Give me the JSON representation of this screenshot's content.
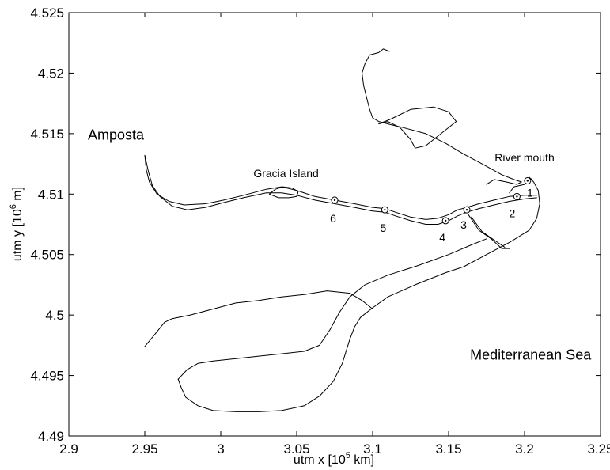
{
  "chart_data": {
    "type": "scatter",
    "title": "",
    "xlabel": {
      "prefix": "utm x [10",
      "exp": "5",
      "suffix": " km]"
    },
    "ylabel": {
      "prefix": "utm y [10",
      "exp": "6",
      "suffix": " m]"
    },
    "xlim": [
      2.9,
      3.25
    ],
    "ylim": [
      4.49,
      4.525
    ],
    "xticks": [
      2.9,
      2.95,
      3.0,
      3.05,
      3.1,
      3.15,
      3.2,
      3.25
    ],
    "xtick_labels": [
      "2.9",
      "2.95",
      "3",
      "3.05",
      "3.1",
      "3.15",
      "3.2",
      "3.25"
    ],
    "yticks": [
      4.49,
      4.495,
      4.5,
      4.505,
      4.51,
      4.515,
      4.52,
      4.525
    ],
    "ytick_labels": [
      "4.49",
      "4.495",
      "4.5",
      "4.505",
      "4.51",
      "4.515",
      "4.52",
      "4.525"
    ],
    "grid": false,
    "stations": [
      {
        "label": "1",
        "x": 3.202,
        "y": 4.5111
      },
      {
        "label": "2",
        "x": 3.195,
        "y": 4.5098
      },
      {
        "label": "3",
        "x": 3.162,
        "y": 4.5087
      },
      {
        "label": "4",
        "x": 3.148,
        "y": 4.5078
      },
      {
        "label": "5",
        "x": 3.108,
        "y": 4.5087
      },
      {
        "label": "6",
        "x": 3.075,
        "y": 4.5095
      }
    ],
    "places": [
      {
        "name": "Amposta",
        "x": 2.931,
        "y": 4.5145
      },
      {
        "name": "Gracia Island",
        "x": 3.043,
        "y": 4.5114
      },
      {
        "name": "River mouth",
        "x": 3.2,
        "y": 4.5127
      },
      {
        "name": "Mediterranean Sea",
        "x": 3.204,
        "y": 4.4963
      }
    ],
    "coastline": {
      "river_north_bank": [
        [
          2.95,
          4.5132
        ],
        [
          2.951,
          4.512
        ],
        [
          2.953,
          4.511
        ],
        [
          2.958,
          4.51
        ],
        [
          2.966,
          4.5094
        ],
        [
          2.976,
          4.5091
        ],
        [
          2.99,
          4.5092
        ],
        [
          3.002,
          4.5095
        ],
        [
          3.015,
          4.5099
        ],
        [
          3.03,
          4.5104
        ],
        [
          3.04,
          4.5106
        ],
        [
          3.05,
          4.5103
        ],
        [
          3.062,
          4.5098
        ],
        [
          3.075,
          4.5095
        ],
        [
          3.088,
          4.5092
        ],
        [
          3.1,
          4.5089
        ],
        [
          3.108,
          4.5088
        ],
        [
          3.115,
          4.5085
        ],
        [
          3.125,
          4.5081
        ],
        [
          3.135,
          4.5079
        ],
        [
          3.143,
          4.508
        ],
        [
          3.15,
          4.5083
        ],
        [
          3.156,
          4.5087
        ],
        [
          3.162,
          4.5089
        ],
        [
          3.17,
          4.5092
        ],
        [
          3.18,
          4.5095
        ],
        [
          3.19,
          4.5098
        ],
        [
          3.2,
          4.5099
        ],
        [
          3.208,
          4.5099
        ]
      ],
      "river_south_bank": [
        [
          2.95,
          4.5132
        ],
        [
          2.9525,
          4.5118
        ],
        [
          2.955,
          4.5107
        ],
        [
          2.96,
          4.5098
        ],
        [
          2.968,
          4.509
        ],
        [
          2.978,
          4.5087
        ],
        [
          2.99,
          4.5089
        ],
        [
          3.002,
          4.5093
        ],
        [
          3.015,
          4.5097
        ],
        [
          3.03,
          4.5101
        ],
        [
          3.04,
          4.5101
        ],
        [
          3.05,
          4.5099
        ],
        [
          3.062,
          4.5095
        ],
        [
          3.075,
          4.5092
        ],
        [
          3.088,
          4.5089
        ],
        [
          3.1,
          4.5086
        ],
        [
          3.108,
          4.5085
        ],
        [
          3.115,
          4.5082
        ],
        [
          3.125,
          4.5078
        ],
        [
          3.135,
          4.5075
        ],
        [
          3.143,
          4.5075
        ],
        [
          3.15,
          4.5078
        ],
        [
          3.156,
          4.5082
        ],
        [
          3.162,
          4.5085
        ],
        [
          3.17,
          4.5088
        ],
        [
          3.18,
          4.5091
        ],
        [
          3.19,
          4.5094
        ],
        [
          3.2,
          4.5096
        ],
        [
          3.208,
          4.5097
        ]
      ],
      "gracia_island": [
        [
          3.032,
          4.51
        ],
        [
          3.036,
          4.5104
        ],
        [
          3.041,
          4.5106
        ],
        [
          3.047,
          4.5105
        ],
        [
          3.051,
          4.5102
        ],
        [
          3.05,
          4.5098
        ],
        [
          3.045,
          4.5097
        ],
        [
          3.038,
          4.5097
        ],
        [
          3.032,
          4.51
        ]
      ],
      "north_spit": [
        [
          3.111,
          4.5218
        ],
        [
          3.107,
          4.522
        ],
        [
          3.104,
          4.5217
        ],
        [
          3.098,
          4.5215
        ],
        [
          3.095,
          4.5208
        ],
        [
          3.093,
          4.52
        ],
        [
          3.094,
          4.519
        ],
        [
          3.096,
          4.518
        ],
        [
          3.098,
          4.517
        ],
        [
          3.1,
          4.5163
        ],
        [
          3.104,
          4.516
        ],
        [
          3.11,
          4.5158
        ],
        [
          3.12,
          4.5155
        ],
        [
          3.135,
          4.515
        ],
        [
          3.148,
          4.5142
        ],
        [
          3.16,
          4.5133
        ],
        [
          3.172,
          4.5125
        ],
        [
          3.185,
          4.5116
        ],
        [
          3.193,
          4.5112
        ],
        [
          3.198,
          4.511
        ],
        [
          3.195,
          4.5108
        ],
        [
          3.188,
          4.511
        ],
        [
          3.18,
          4.5112
        ],
        [
          3.175,
          4.5108
        ]
      ],
      "lagoon_north": [
        [
          3.104,
          4.5158
        ],
        [
          3.112,
          4.5162
        ],
        [
          3.125,
          4.517
        ],
        [
          3.14,
          4.5172
        ],
        [
          3.15,
          4.5168
        ],
        [
          3.155,
          4.516
        ],
        [
          3.145,
          4.515
        ],
        [
          3.135,
          4.514
        ],
        [
          3.128,
          4.5138
        ],
        [
          3.125,
          4.5145
        ],
        [
          3.118,
          4.5155
        ],
        [
          3.11,
          4.516
        ],
        [
          3.104,
          4.5158
        ]
      ],
      "east_coast": [
        [
          3.203,
          4.5114
        ],
        [
          3.206,
          4.511
        ],
        [
          3.209,
          4.5103
        ],
        [
          3.21,
          4.5092
        ],
        [
          3.208,
          4.508
        ],
        [
          3.203,
          4.507
        ],
        [
          3.19,
          4.506
        ],
        [
          3.175,
          4.505
        ],
        [
          3.16,
          4.504
        ],
        [
          3.148,
          4.5035
        ],
        [
          3.128,
          4.5025
        ],
        [
          3.11,
          4.5015
        ],
        [
          3.1,
          4.5006
        ],
        [
          3.092,
          4.4998
        ],
        [
          3.088,
          4.499
        ],
        [
          3.085,
          4.498
        ],
        [
          3.08,
          4.496
        ],
        [
          3.074,
          4.4945
        ],
        [
          3.065,
          4.4933
        ],
        [
          3.055,
          4.4925
        ],
        [
          3.04,
          4.4921
        ],
        [
          3.025,
          4.492
        ],
        [
          3.01,
          4.492
        ],
        [
          2.995,
          4.4921
        ],
        [
          2.985,
          4.4925
        ],
        [
          2.977,
          4.4932
        ],
        [
          2.974,
          4.494
        ],
        [
          2.972,
          4.4947
        ]
      ],
      "south_bay_inner": [
        [
          2.95,
          4.4974
        ],
        [
          2.956,
          4.4983
        ],
        [
          2.963,
          4.4994
        ],
        [
          2.968,
          4.4997
        ],
        [
          2.98,
          4.5
        ],
        [
          2.995,
          4.5005
        ],
        [
          3.01,
          4.501
        ],
        [
          3.025,
          4.5012
        ],
        [
          3.04,
          4.5015
        ],
        [
          3.055,
          4.5017
        ],
        [
          3.07,
          4.502
        ],
        [
          3.085,
          4.5018
        ],
        [
          3.093,
          4.5012
        ],
        [
          3.1,
          4.5005
        ]
      ],
      "south_spit": [
        [
          2.972,
          4.4947
        ],
        [
          2.978,
          4.4955
        ],
        [
          2.985,
          4.496
        ],
        [
          2.995,
          4.4962
        ],
        [
          3.01,
          4.4964
        ],
        [
          3.025,
          4.4966
        ],
        [
          3.04,
          4.4968
        ],
        [
          3.055,
          4.497
        ],
        [
          3.065,
          4.4975
        ],
        [
          3.072,
          4.4988
        ],
        [
          3.078,
          4.5002
        ],
        [
          3.085,
          4.5015
        ],
        [
          3.095,
          4.5025
        ],
        [
          3.11,
          4.5033
        ],
        [
          3.13,
          4.5041
        ],
        [
          3.15,
          4.505
        ],
        [
          3.165,
          4.5058
        ],
        [
          3.175,
          4.5063
        ]
      ],
      "mouth_channel_a": [
        [
          3.163,
          4.5083
        ],
        [
          3.17,
          4.507
        ],
        [
          3.178,
          4.5063
        ],
        [
          3.185,
          4.5055
        ],
        [
          3.19,
          4.5055
        ]
      ],
      "mouth_channel_b": [
        [
          3.165,
          4.5081
        ],
        [
          3.172,
          4.5069
        ],
        [
          3.18,
          4.5062
        ],
        [
          3.187,
          4.5056
        ]
      ],
      "mouth_north_arm": [
        [
          3.19,
          4.5101
        ],
        [
          3.193,
          4.5106
        ],
        [
          3.2,
          4.5108
        ],
        [
          3.205,
          4.5113
        ]
      ]
    }
  }
}
